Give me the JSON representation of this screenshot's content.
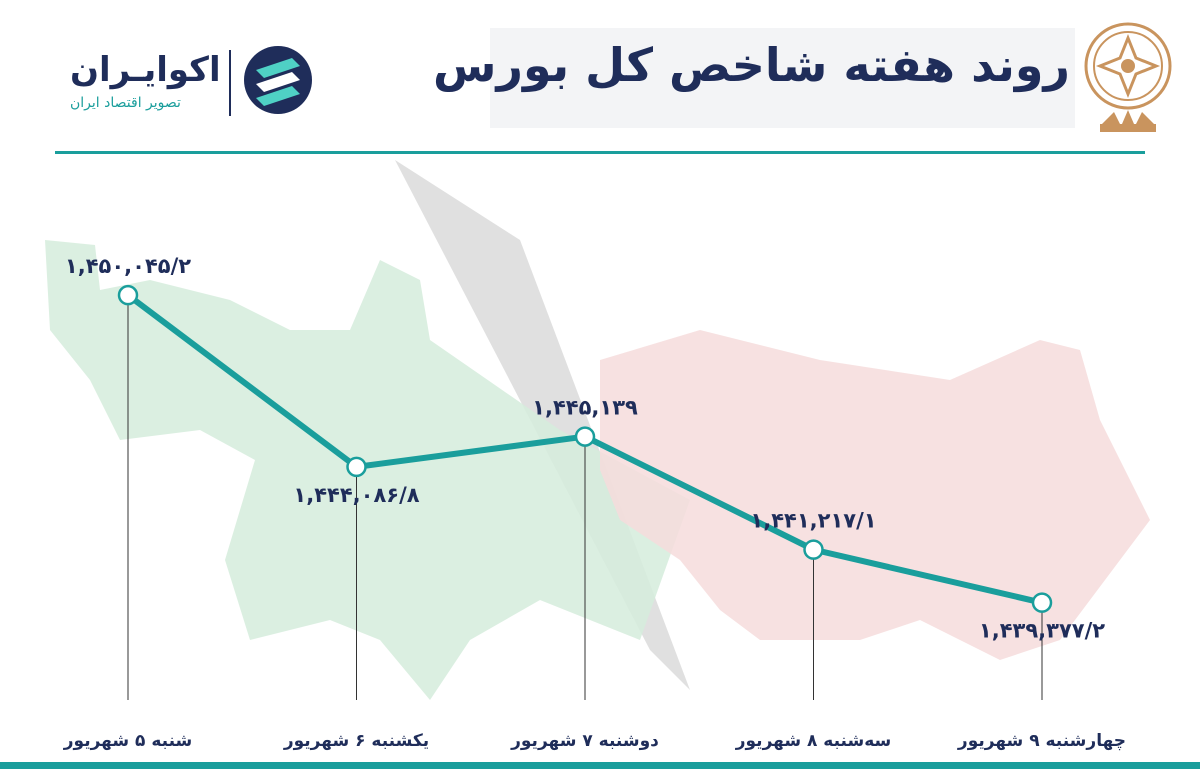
{
  "header": {
    "title": "روند هفته شاخص کل بورس",
    "brand_name": "اکوایـران",
    "brand_subtitle": "تصویر اقتصاد ایران"
  },
  "colors": {
    "accent": "#1a9e9c",
    "title": "#1f2d5a",
    "bull": "#d5ecdc",
    "bear": "#f6dcdc",
    "arrow": "#dcdcdc",
    "emblem": "#c9945e"
  },
  "icons": [
    "ecoiran-logo-icon",
    "stock-exchange-emblem-icon",
    "bull-illustration",
    "bear-illustration"
  ],
  "chart_data": {
    "type": "line",
    "title": "روند هفته شاخص کل بورس",
    "categories": [
      "شنبه ۵ شهریور",
      "یکشنبه ۶ شهریور",
      "دوشنبه ۷ شهریور",
      "سه‌شنبه ۸ شهریور",
      "چهارشنبه ۹ شهریور"
    ],
    "values": [
      1450045.2,
      1444086.8,
      1445139,
      1441217.1,
      1439377.2
    ],
    "value_labels": [
      "۱,۴۵۰,۰۴۵/۲",
      "۱,۴۴۴,۰۸۶/۸",
      "۱,۴۴۵,۱۳۹",
      "۱,۴۴۱,۲۱۷/۱",
      "۱,۴۳۹,۳۷۷/۲"
    ],
    "label_side": [
      "above",
      "below",
      "above",
      "above",
      "below"
    ],
    "ylim": [
      1436000,
      1453000
    ],
    "grid": false,
    "legend": "none",
    "xlabel": "",
    "ylabel": ""
  }
}
